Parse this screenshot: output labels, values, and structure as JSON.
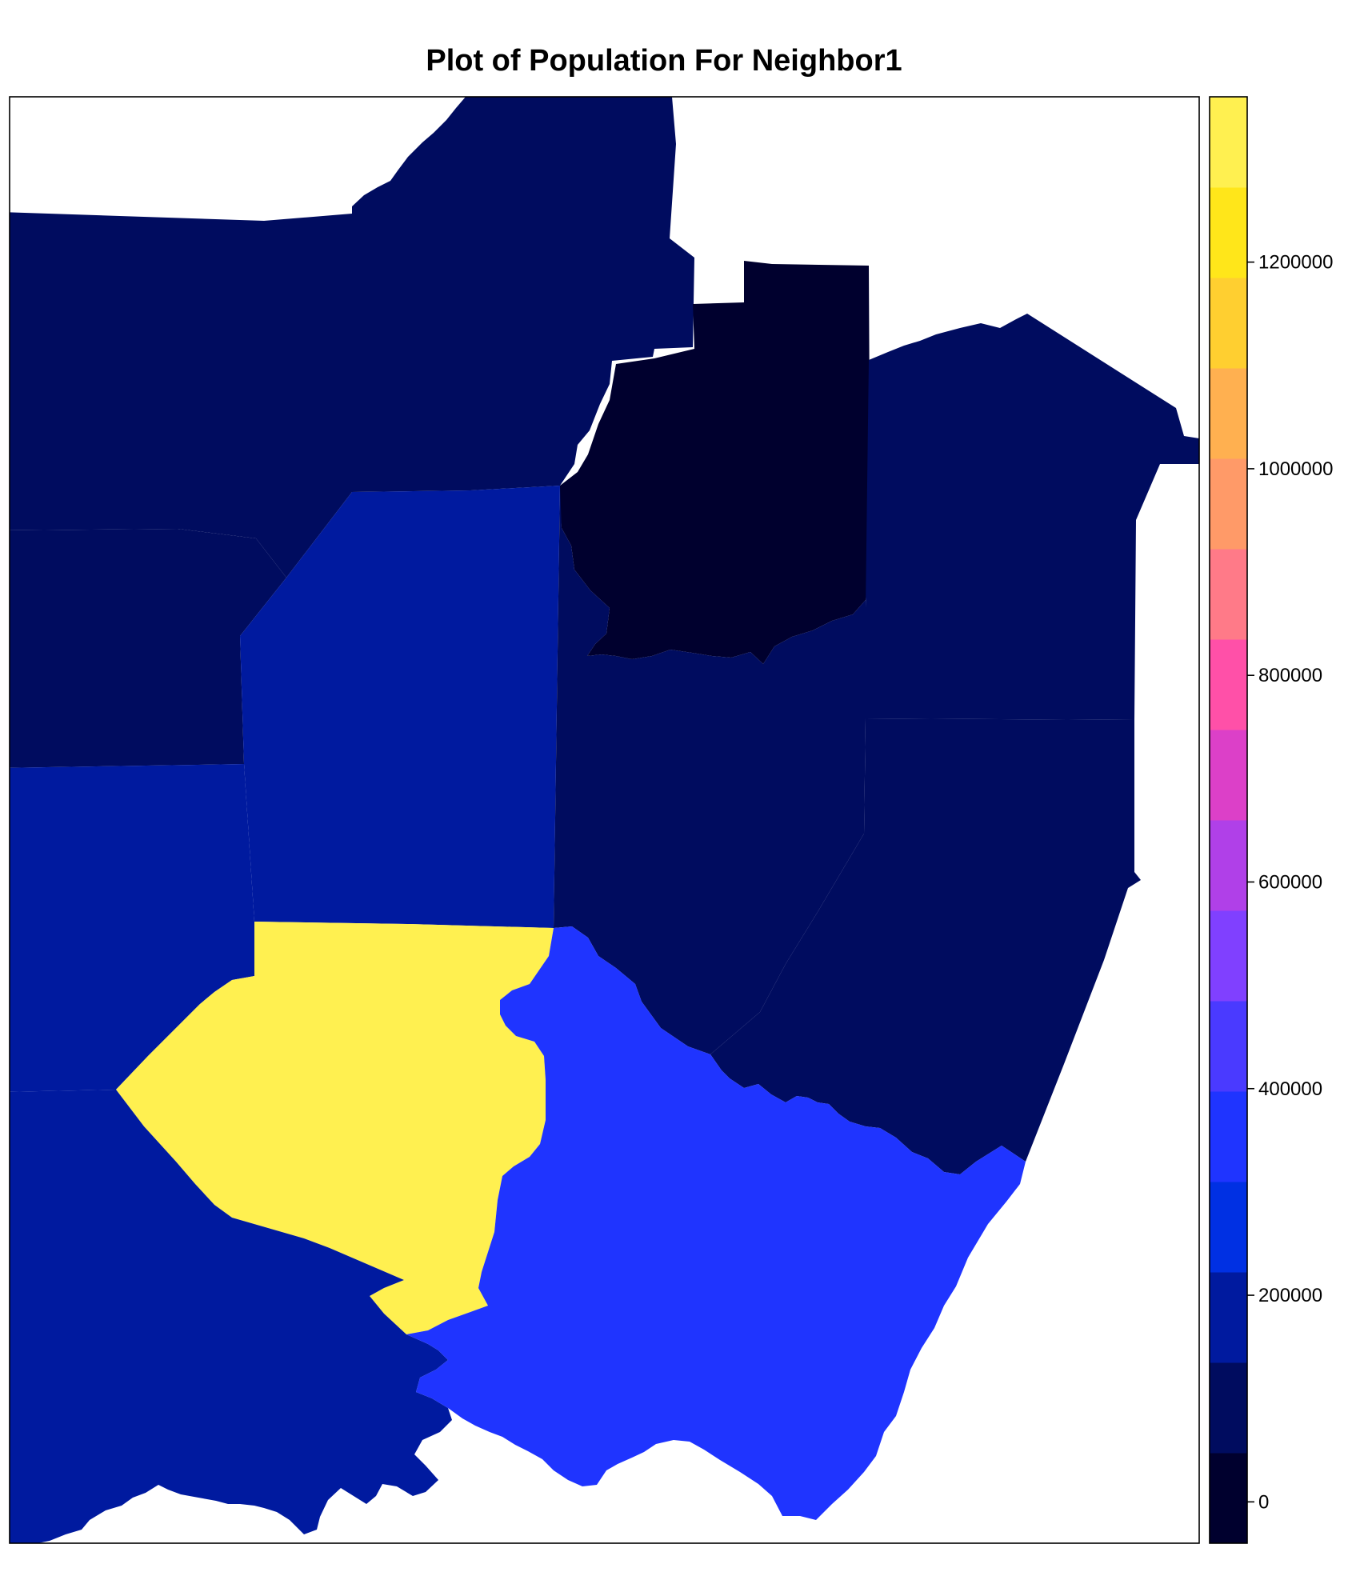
{
  "title": "Plot of Population For Neighbor1",
  "chart_data": {
    "type": "choropleth",
    "title": "Plot of Population For Neighbor1",
    "value_range": [
      -40000,
      1360000
    ],
    "colorbar": {
      "breaks": [
        -40000,
        47500,
        135000,
        222500,
        310000,
        397500,
        485000,
        572500,
        660000,
        747500,
        835000,
        922500,
        1010000,
        1097500,
        1185000,
        1272500,
        1360000
      ],
      "colors": [
        "#00002E",
        "#000C5F",
        "#001A9F",
        "#0030E3",
        "#1F34FF",
        "#4A3AFF",
        "#8040FF",
        "#B040E8",
        "#DC40C8",
        "#FF50A8",
        "#FF7A88",
        "#FF9A68",
        "#FFB050",
        "#FFCF30",
        "#FFE61A",
        "#FFF050"
      ],
      "ticks": [
        0,
        200000,
        400000,
        600000,
        800000,
        1000000,
        1200000
      ],
      "tick_labels": [
        "0",
        "200000",
        "400000",
        "600000",
        "800000",
        "1000000",
        "1200000"
      ]
    },
    "regions": [
      {
        "id": "northwest-a",
        "value": 90000,
        "color": "#000C5F"
      },
      {
        "id": "north-b",
        "value": 90000,
        "color": "#000C5F"
      },
      {
        "id": "northeast-c",
        "value": 30000,
        "color": "#00002E"
      },
      {
        "id": "east-d",
        "value": 90000,
        "color": "#000C5F"
      },
      {
        "id": "west-e",
        "value": 90000,
        "color": "#000C5F"
      },
      {
        "id": "center-f",
        "value": 170000,
        "color": "#001A9F"
      },
      {
        "id": "center-east-g",
        "value": 90000,
        "color": "#000C5F"
      },
      {
        "id": "southeast-h",
        "value": 90000,
        "color": "#000C5F"
      },
      {
        "id": "west-i",
        "value": 170000,
        "color": "#001A9F"
      },
      {
        "id": "south-j",
        "value": 1320000,
        "color": "#FFF050"
      },
      {
        "id": "southwest-k",
        "value": 170000,
        "color": "#001A9F"
      },
      {
        "id": "south-l",
        "value": 360000,
        "color": "#1F34FF"
      }
    ]
  }
}
